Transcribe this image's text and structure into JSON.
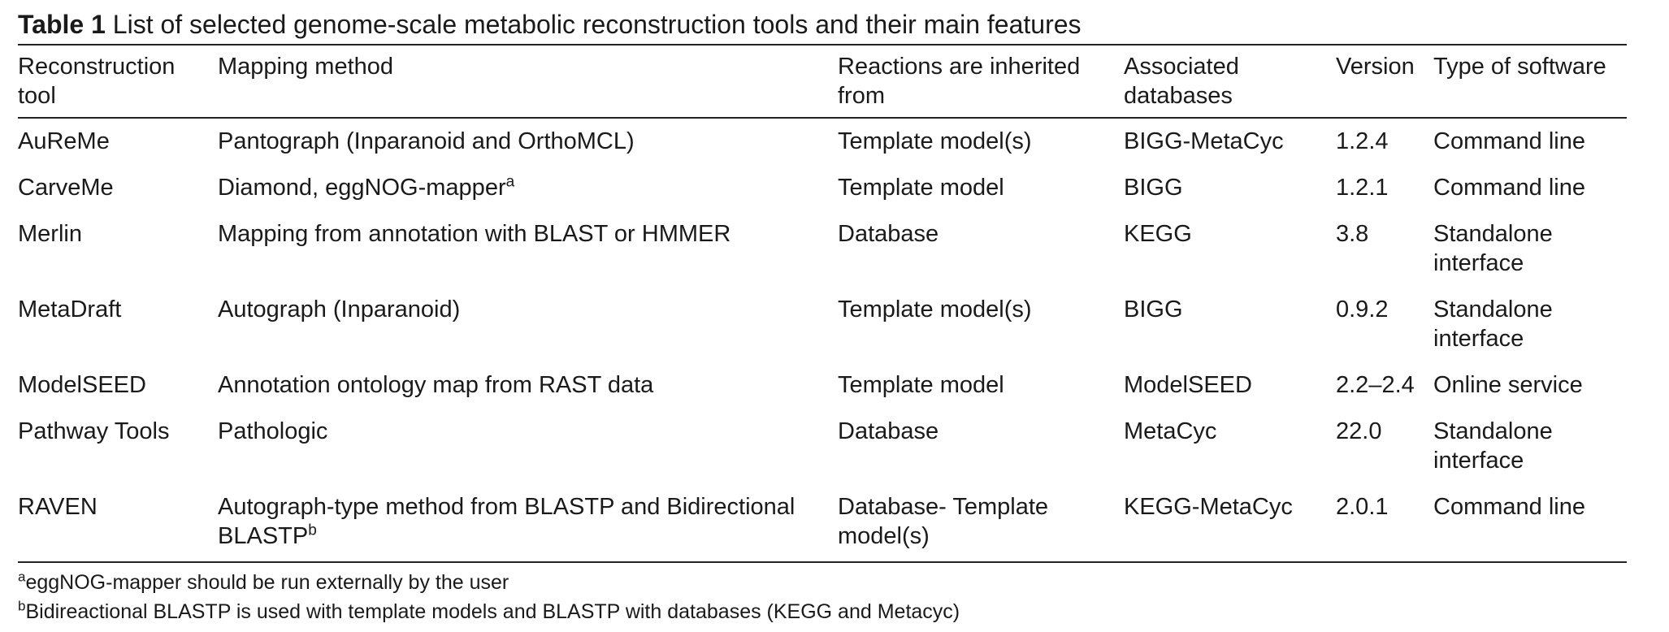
{
  "caption": {
    "label": "Table 1",
    "text": " List of selected genome-scale metabolic reconstruction tools and their main features"
  },
  "columns": [
    "Reconstruction tool",
    "Mapping method",
    "Reactions are inherited from",
    "Associated databases",
    "Version",
    "Type of software"
  ],
  "rows": [
    {
      "tool": "AuReMe",
      "method": "Pantograph (Inparanoid and OrthoMCL)",
      "method_sup": "",
      "inherited": "Template model(s)",
      "databases": "BIGG-MetaCyc",
      "version": "1.2.4",
      "software": "Command line"
    },
    {
      "tool": "CarveMe",
      "method": "Diamond, eggNOG-mapper",
      "method_sup": "a",
      "inherited": "Template model",
      "databases": "BIGG",
      "version": "1.2.1",
      "software": "Command line"
    },
    {
      "tool": "Merlin",
      "method": "Mapping from annotation with BLAST or HMMER",
      "method_sup": "",
      "inherited": "Database",
      "databases": "KEGG",
      "version": "3.8",
      "software": "Standalone interface"
    },
    {
      "tool": "MetaDraft",
      "method": "Autograph (Inparanoid)",
      "method_sup": "",
      "inherited": "Template model(s)",
      "databases": "BIGG",
      "version": "0.9.2",
      "software": "Standalone interface"
    },
    {
      "tool": "ModelSEED",
      "method": "Annotation ontology map from RAST data",
      "method_sup": "",
      "inherited": "Template model",
      "databases": "ModelSEED",
      "version": "2.2–2.4",
      "software": "Online service"
    },
    {
      "tool": "Pathway Tools",
      "method": "Pathologic",
      "method_sup": "",
      "inherited": "Database",
      "databases": "MetaCyc",
      "version": "22.0",
      "software": "Standalone interface"
    },
    {
      "tool": "RAVEN",
      "method": "Autograph-type method from BLASTP and Bidirectional BLASTP",
      "method_sup": "b",
      "inherited": "Database- Template model(s)",
      "databases": "KEGG-MetaCyc",
      "version": "2.0.1",
      "software": "Command line"
    }
  ],
  "footnotes": [
    {
      "mark": "a",
      "text": "eggNOG-mapper should be run externally by the user"
    },
    {
      "mark": "b",
      "text": "Bidireactional BLASTP is used with template models and BLASTP with databases (KEGG and Metacyc)"
    }
  ]
}
